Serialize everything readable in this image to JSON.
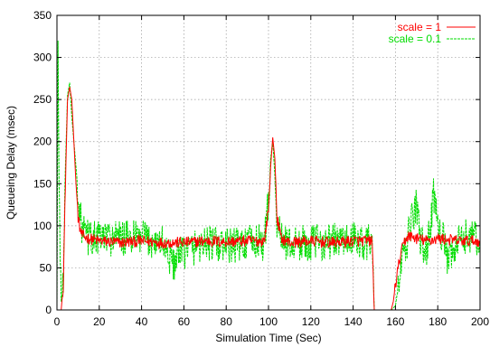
{
  "chart_data": {
    "type": "line",
    "xlabel": "Simulation Time (Sec)",
    "ylabel": "Queueing Delay (msec)",
    "xlim": [
      0,
      200
    ],
    "ylim": [
      0,
      350
    ],
    "x_ticks": [
      "0",
      "20",
      "40",
      "60",
      "80",
      "100",
      "120",
      "140",
      "160",
      "180",
      "200"
    ],
    "y_ticks": [
      "0",
      "50",
      "100",
      "150",
      "200",
      "250",
      "300",
      "350"
    ],
    "grid": true,
    "legend_position": "top-right",
    "series": [
      {
        "name": "scale = 1",
        "color": "#ff0000",
        "style": "solid",
        "points": [
          [
            0,
            0
          ],
          [
            2,
            0
          ],
          [
            3,
            30
          ],
          [
            4,
            150
          ],
          [
            5,
            250
          ],
          [
            6,
            265
          ],
          [
            7,
            250
          ],
          [
            8,
            200
          ],
          [
            9,
            150
          ],
          [
            10,
            110
          ],
          [
            11,
            95
          ],
          [
            12,
            88
          ],
          [
            15,
            85
          ],
          [
            20,
            82
          ],
          [
            30,
            80
          ],
          [
            40,
            82
          ],
          [
            50,
            80
          ],
          [
            60,
            80
          ],
          [
            70,
            82
          ],
          [
            80,
            81
          ],
          [
            90,
            82
          ],
          [
            98,
            82
          ],
          [
            100,
            120
          ],
          [
            101,
            170
          ],
          [
            102,
            205
          ],
          [
            103,
            180
          ],
          [
            104,
            110
          ],
          [
            106,
            85
          ],
          [
            110,
            80
          ],
          [
            120,
            82
          ],
          [
            130,
            80
          ],
          [
            140,
            82
          ],
          [
            149,
            82
          ],
          [
            150,
            0
          ],
          [
            158,
            0
          ],
          [
            159,
            10
          ],
          [
            160,
            30
          ],
          [
            162,
            60
          ],
          [
            164,
            80
          ],
          [
            166,
            88
          ],
          [
            170,
            85
          ],
          [
            175,
            82
          ],
          [
            180,
            85
          ],
          [
            190,
            82
          ],
          [
            200,
            82
          ]
        ]
      },
      {
        "name": "scale = 0.1",
        "color": "#00dd00",
        "style": "dashed",
        "points": [
          [
            0,
            0
          ],
          [
            0.5,
            320
          ],
          [
            1,
            150
          ],
          [
            2,
            10
          ],
          [
            3,
            30
          ],
          [
            4,
            170
          ],
          [
            5,
            255
          ],
          [
            6,
            270
          ],
          [
            7,
            230
          ],
          [
            8,
            200
          ],
          [
            9,
            170
          ],
          [
            10,
            140
          ],
          [
            11,
            110
          ],
          [
            12,
            95
          ],
          [
            15,
            85
          ],
          [
            20,
            85
          ],
          [
            30,
            85
          ],
          [
            40,
            85
          ],
          [
            50,
            80
          ],
          [
            55,
            55
          ],
          [
            60,
            70
          ],
          [
            70,
            80
          ],
          [
            80,
            75
          ],
          [
            90,
            80
          ],
          [
            98,
            80
          ],
          [
            100,
            130
          ],
          [
            101,
            180
          ],
          [
            102,
            200
          ],
          [
            103,
            160
          ],
          [
            104,
            100
          ],
          [
            106,
            85
          ],
          [
            110,
            78
          ],
          [
            120,
            80
          ],
          [
            130,
            82
          ],
          [
            140,
            82
          ],
          [
            149,
            80
          ],
          [
            150,
            0
          ],
          [
            158,
            0
          ],
          [
            160,
            5
          ],
          [
            162,
            40
          ],
          [
            165,
            75
          ],
          [
            168,
            110
          ],
          [
            170,
            125
          ],
          [
            172,
            80
          ],
          [
            175,
            70
          ],
          [
            178,
            135
          ],
          [
            180,
            110
          ],
          [
            182,
            90
          ],
          [
            185,
            55
          ],
          [
            190,
            80
          ],
          [
            195,
            90
          ],
          [
            200,
            80
          ]
        ]
      }
    ]
  }
}
